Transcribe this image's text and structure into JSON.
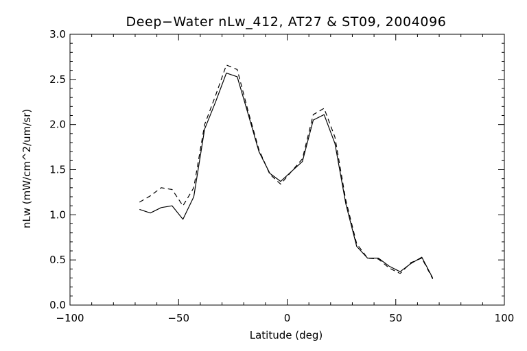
{
  "chart_data": {
    "type": "line",
    "title": "Deep−Water nLw_412, AT27 & ST09, 2004096",
    "xlabel": "Latitude (deg)",
    "ylabel": "nLw (mW/cm^2/um/sr)",
    "xlim": [
      -100,
      100
    ],
    "ylim": [
      0.0,
      3.0
    ],
    "x_ticks": [
      -100,
      -50,
      0,
      50,
      100
    ],
    "x_tick_labels": [
      "−100",
      "−50",
      "0",
      "50",
      "100"
    ],
    "y_ticks": [
      0.0,
      0.5,
      1.0,
      1.5,
      2.0,
      2.5,
      3.0
    ],
    "y_tick_labels": [
      "0.0",
      "0.5",
      "1.0",
      "1.5",
      "2.0",
      "2.5",
      "3.0"
    ],
    "grid": false,
    "series": [
      {
        "style": "solid",
        "color": "#000000",
        "x": [
          -68,
          -63,
          -58,
          -53,
          -48,
          -43,
          -38,
          -33,
          -28,
          -23,
          -18,
          -13,
          -8,
          -3,
          2,
          7,
          12,
          17,
          22,
          27,
          32,
          37,
          42,
          47,
          52,
          57,
          62,
          67
        ],
        "y": [
          1.06,
          1.02,
          1.08,
          1.1,
          0.95,
          1.2,
          1.95,
          2.25,
          2.57,
          2.53,
          2.12,
          1.7,
          1.46,
          1.37,
          1.48,
          1.59,
          2.05,
          2.11,
          1.79,
          1.12,
          0.65,
          0.52,
          0.52,
          0.43,
          0.37,
          0.46,
          0.53,
          0.3
        ]
      },
      {
        "style": "dashed",
        "color": "#000000",
        "x": [
          -68,
          -63,
          -58,
          -53,
          -48,
          -43,
          -38,
          -33,
          -28,
          -23,
          -18,
          -13,
          -8,
          -3,
          2,
          7,
          12,
          17,
          22,
          27,
          32,
          37,
          42,
          47,
          52,
          57,
          62,
          67
        ],
        "y": [
          1.14,
          1.21,
          1.3,
          1.28,
          1.1,
          1.3,
          2.0,
          2.32,
          2.66,
          2.61,
          2.15,
          1.72,
          1.45,
          1.34,
          1.48,
          1.62,
          2.11,
          2.18,
          1.86,
          1.16,
          0.68,
          0.52,
          0.51,
          0.41,
          0.35,
          0.47,
          0.52,
          0.29
        ]
      }
    ]
  }
}
